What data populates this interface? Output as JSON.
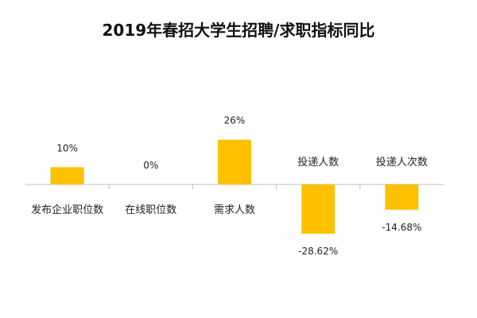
{
  "chart_data": {
    "type": "bar",
    "title": "2019年春招大学生招聘/求职指标同比",
    "categories": [
      "发布企业职位数",
      "在线职位数",
      "需求人数",
      "投递人数",
      "投递人次数"
    ],
    "values": [
      10,
      0,
      26,
      -28.62,
      -14.68
    ],
    "value_labels": [
      "10%",
      "0%",
      "26%",
      "-28.62%",
      "-14.68%"
    ],
    "unit": "%",
    "ylim": [
      -30,
      30
    ],
    "grid": false,
    "legend": "none",
    "colors": {
      "bar": "#FFC000",
      "axis": "#BFBFBF",
      "text": "#222222"
    }
  }
}
